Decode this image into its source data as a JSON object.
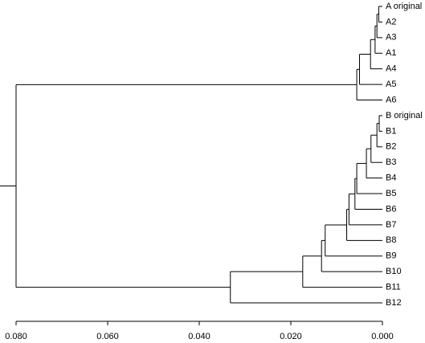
{
  "chart_data": {
    "type": "dendrogram",
    "xlim": [
      0.08,
      0
    ],
    "xticks": [
      {
        "value": 0.08,
        "label": "0.080"
      },
      {
        "value": 0.06,
        "label": "0.060"
      },
      {
        "value": 0.04,
        "label": "0.040"
      },
      {
        "value": 0.02,
        "label": "0.020"
      },
      {
        "value": 0,
        "label": "0.000"
      }
    ],
    "tree": {
      "height": 0.08,
      "children": [
        {
          "height": 0.0056,
          "children": [
            {
              "height": 0.005,
              "children": [
                {
                  "height": 0.0026,
                  "children": [
                    {
                      "height": 0.0016,
                      "children": [
                        {
                          "height": 0.0012,
                          "children": [
                            {
                              "height": 0.0008,
                              "children": [
                                {
                                  "label": "A original"
                                },
                                {
                                  "label": "A2"
                                }
                              ]
                            },
                            {
                              "label": "A3"
                            }
                          ]
                        },
                        {
                          "label": "A1"
                        }
                      ]
                    },
                    {
                      "label": "A4"
                    }
                  ]
                },
                {
                  "label": "A5"
                }
              ]
            },
            {
              "label": "A6"
            }
          ]
        },
        {
          "height": 0.0332,
          "children": [
            {
              "height": 0.0174,
              "children": [
                {
                  "height": 0.0133,
                  "children": [
                    {
                      "height": 0.0125,
                      "children": [
                        {
                          "height": 0.0078,
                          "children": [
                            {
                              "height": 0.0073,
                              "children": [
                                {
                                  "height": 0.006,
                                  "children": [
                                    {
                                      "height": 0.0056,
                                      "children": [
                                        {
                                          "height": 0.0035,
                                          "children": [
                                            {
                                              "height": 0.0025,
                                              "children": [
                                                {
                                                  "height": 0.0012,
                                                  "children": [
                                                    {
                                                      "height": 0.0007,
                                                      "children": [
                                                        {
                                                          "label": "B original"
                                                        },
                                                        {
                                                          "label": "B1"
                                                        }
                                                      ]
                                                    },
                                                    {
                                                      "label": "B2"
                                                    }
                                                  ]
                                                },
                                                {
                                                  "label": "B3"
                                                }
                                              ]
                                            },
                                            {
                                              "label": "B4"
                                            }
                                          ]
                                        },
                                        {
                                          "label": "B5"
                                        }
                                      ]
                                    },
                                    {
                                      "label": "B6"
                                    }
                                  ]
                                },
                                {
                                  "label": "B7"
                                }
                              ]
                            },
                            {
                              "label": "B8"
                            }
                          ]
                        },
                        {
                          "label": "B9"
                        }
                      ]
                    },
                    {
                      "label": "B10"
                    }
                  ]
                },
                {
                  "label": "B11"
                }
              ]
            },
            {
              "label": "B12"
            }
          ]
        }
      ]
    }
  }
}
